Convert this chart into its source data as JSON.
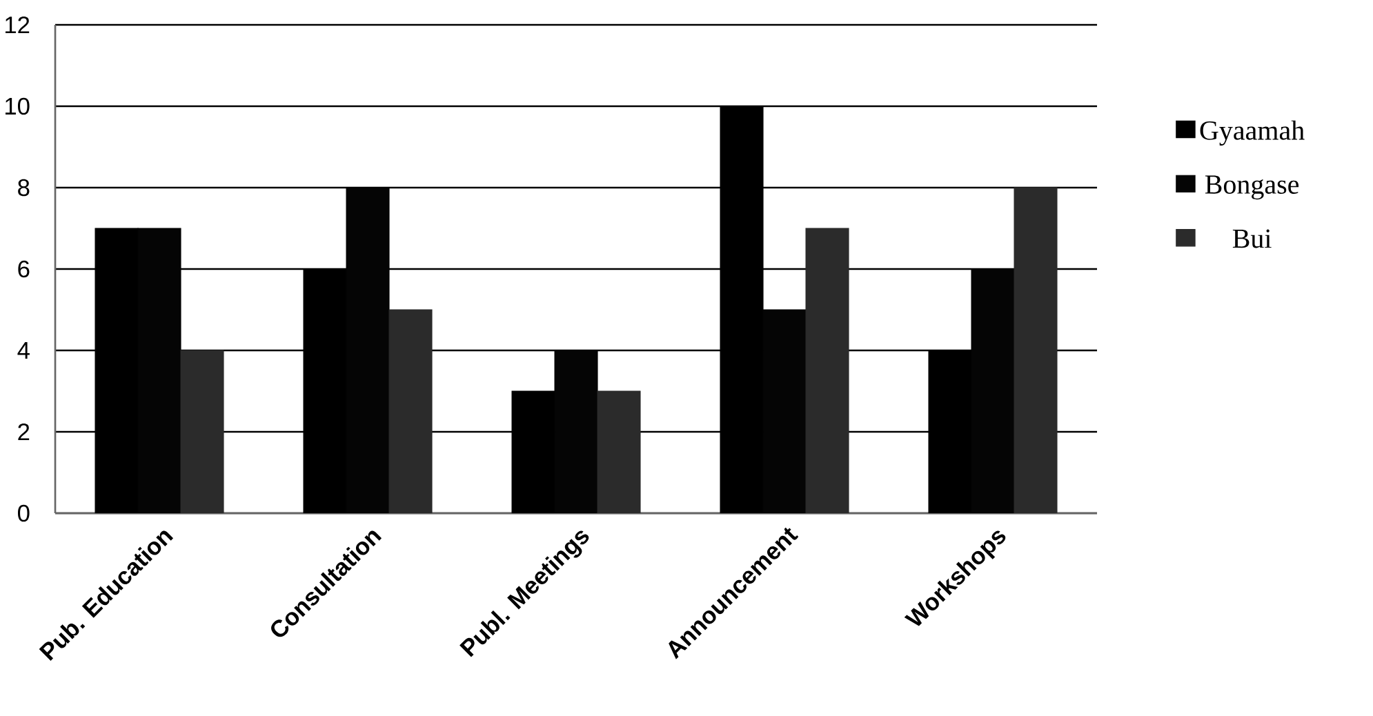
{
  "chart_data": {
    "type": "bar",
    "categories": [
      "Pub. Education",
      "Consultation",
      "Publ. Meetings",
      "Announcement",
      "Workshops"
    ],
    "series": [
      {
        "name": "Gyaamah",
        "color": "#000000",
        "values": [
          7,
          6,
          3,
          10,
          4
        ]
      },
      {
        "name": "Bongase",
        "color": "#050505",
        "values": [
          7,
          8,
          4,
          5,
          6
        ]
      },
      {
        "name": "Bui",
        "color": "#2b2b2b",
        "values": [
          4,
          5,
          3,
          7,
          8
        ]
      }
    ],
    "ylim": [
      0,
      12
    ],
    "yticks": [
      0,
      2,
      4,
      6,
      8,
      10,
      12
    ],
    "grid": "y",
    "legend": "right"
  }
}
